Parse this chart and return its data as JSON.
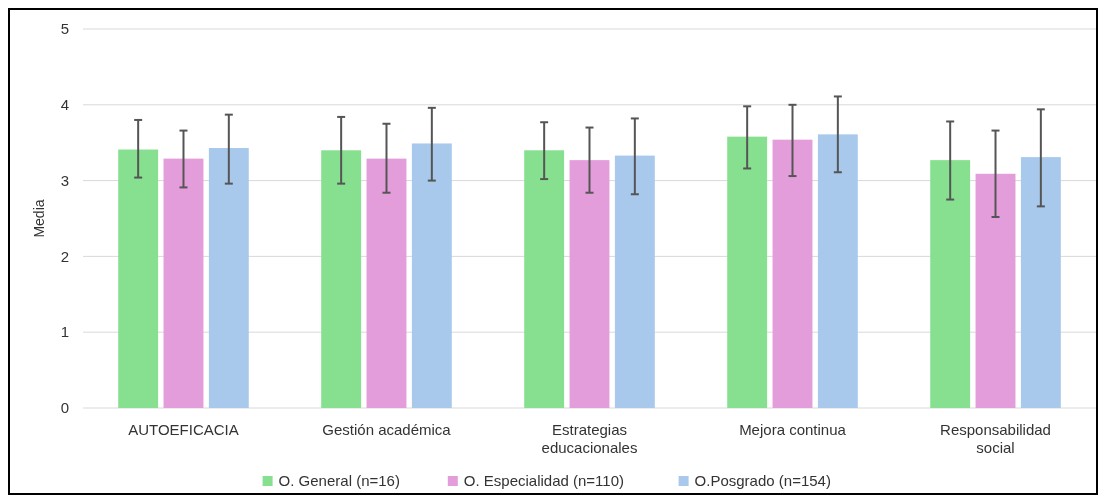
{
  "chart_data": {
    "type": "bar",
    "ylabel": "Media",
    "categories": [
      "AUTOEFICACIA",
      "Gestión académica",
      "Estrategias educacionales",
      "Mejora continua",
      "Responsabilidad social"
    ],
    "series": [
      {
        "name": "O. General (n=16)",
        "color": "#86e08f",
        "values": [
          3.41,
          3.4,
          3.4,
          3.58,
          3.27
        ],
        "errors": [
          [
            3.04,
            3.8
          ],
          [
            2.96,
            3.84
          ],
          [
            3.02,
            3.77
          ],
          [
            3.16,
            3.98
          ],
          [
            2.75,
            3.78
          ]
        ]
      },
      {
        "name": "O. Especialidad (n=110)",
        "color": "#e49ddb",
        "values": [
          3.29,
          3.29,
          3.27,
          3.54,
          3.09
        ],
        "errors": [
          [
            2.91,
            3.66
          ],
          [
            2.84,
            3.75
          ],
          [
            2.84,
            3.7
          ],
          [
            3.06,
            4.0
          ],
          [
            2.52,
            3.66
          ]
        ]
      },
      {
        "name": "O.Posgrado (n=154)",
        "color": "#a8c9ec",
        "values": [
          3.43,
          3.49,
          3.33,
          3.61,
          3.31
        ],
        "errors": [
          [
            2.96,
            3.87
          ],
          [
            3.0,
            3.96
          ],
          [
            2.82,
            3.82
          ],
          [
            3.11,
            4.11
          ],
          [
            2.66,
            3.94
          ]
        ]
      }
    ],
    "ylim": [
      0,
      5
    ],
    "yticks": [
      0,
      1,
      2,
      3,
      4,
      5
    ],
    "grid": "y",
    "legend": "bottom"
  }
}
